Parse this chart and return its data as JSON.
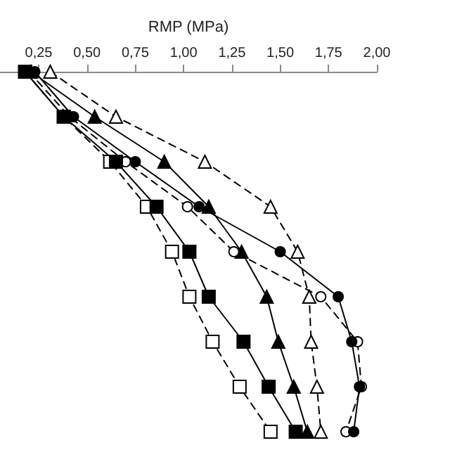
{
  "chart_data": {
    "type": "line",
    "orientation": "horizontal",
    "xlabel": "RMP (MPa)",
    "categories": [
      null,
      null,
      null,
      null,
      null,
      null,
      null,
      null,
      null
    ],
    "xlim": [
      0.05,
      2.0
    ],
    "xticks": [
      {
        "value": 0.25,
        "label": "0,25"
      },
      {
        "value": 0.5,
        "label": "0,50"
      },
      {
        "value": 0.75,
        "label": "0,75"
      },
      {
        "value": 1.0,
        "label": "1,00"
      },
      {
        "value": 1.25,
        "label": "1,25"
      },
      {
        "value": 1.5,
        "label": "1,50"
      },
      {
        "value": 1.75,
        "label": "1,75"
      },
      {
        "value": 2.0,
        "label": "2,00"
      }
    ],
    "grid": false,
    "series": [
      {
        "color": "#000000",
        "marker": "triangle",
        "line_style": "dashed",
        "values": [
          0.31,
          0.65,
          1.11,
          1.45,
          1.59,
          1.65,
          1.66,
          1.69,
          1.71
        ]
      },
      {
        "color": "#000000",
        "marker": "triangle",
        "line_style": "solid",
        "values": [
          0.21,
          0.54,
          0.9,
          1.13,
          1.3,
          1.43,
          1.49,
          1.57,
          1.64
        ]
      },
      {
        "color": "#000000",
        "marker": "circle",
        "line_style": "dashed",
        "values": [
          0.2,
          0.41,
          0.7,
          1.02,
          1.26,
          1.71,
          1.9,
          1.92,
          1.84
        ]
      },
      {
        "color": "#000000",
        "marker": "circle",
        "line_style": "solid",
        "values": [
          0.23,
          0.43,
          0.75,
          1.08,
          1.5,
          1.8,
          1.87,
          1.91,
          1.88
        ]
      },
      {
        "color": "#000000",
        "marker": "square",
        "line_style": "dashed",
        "values": [
          0.18,
          0.38,
          0.62,
          0.81,
          0.94,
          1.03,
          1.15,
          1.29,
          1.45
        ]
      },
      {
        "color": "#000000",
        "marker": "square",
        "line_style": "solid",
        "values": [
          0.18,
          0.38,
          0.65,
          0.86,
          1.03,
          1.13,
          1.31,
          1.44,
          1.58
        ]
      }
    ]
  }
}
